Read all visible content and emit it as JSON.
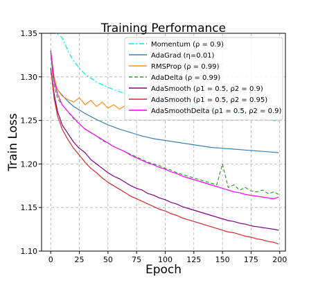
{
  "chart_data": {
    "type": "line",
    "title": "Training Performance",
    "xlabel": "Epoch",
    "ylabel": "Train Loss",
    "xlim": [
      -8,
      205
    ],
    "ylim": [
      1.1,
      1.35
    ],
    "xticks": [
      0,
      25,
      50,
      75,
      100,
      125,
      150,
      175,
      200
    ],
    "yticks": [
      1.1,
      1.15,
      1.2,
      1.25,
      1.3,
      1.35
    ],
    "ytick_labels": [
      "1.10",
      "1.15",
      "1.20",
      "1.25",
      "1.30",
      "1.35"
    ],
    "grid": true,
    "legend_position": "top-right",
    "series": [
      {
        "name": "Momentum (ρ = 0.9)",
        "color": "#00e5ee",
        "dash": "dashdot",
        "x": [
          0,
          5,
          10,
          15,
          20,
          25,
          30,
          40,
          50,
          60,
          70,
          80,
          90,
          100,
          110,
          120,
          130,
          140,
          150,
          160,
          170,
          180,
          190,
          199
        ],
        "values": [
          1.38,
          1.36,
          1.345,
          1.33,
          1.318,
          1.31,
          1.303,
          1.294,
          1.288,
          1.283,
          1.279,
          1.276,
          1.274,
          1.272,
          1.27,
          1.268,
          1.266,
          1.264,
          1.262,
          1.26,
          1.257,
          1.254,
          1.251,
          1.249
        ]
      },
      {
        "name": "AdaGrad (η=0.01)",
        "color": "#3a7fb5",
        "dash": "solid",
        "x": [
          0,
          2,
          5,
          10,
          15,
          20,
          25,
          30,
          40,
          50,
          60,
          70,
          80,
          90,
          100,
          110,
          120,
          130,
          140,
          150,
          160,
          170,
          180,
          190,
          199
        ],
        "values": [
          1.328,
          1.3,
          1.287,
          1.279,
          1.272,
          1.266,
          1.262,
          1.258,
          1.251,
          1.245,
          1.24,
          1.236,
          1.232,
          1.229,
          1.227,
          1.225,
          1.223,
          1.221,
          1.219,
          1.218,
          1.217,
          1.216,
          1.215,
          1.214,
          1.213
        ]
      },
      {
        "name": "RMSProp (ρ = 0.99)",
        "color": "#ff8c1a",
        "dash": "solid",
        "x": [
          0,
          3,
          6,
          10,
          15,
          20,
          25,
          30,
          35,
          40,
          45,
          50,
          55,
          60,
          65,
          70,
          75,
          80,
          85,
          90,
          95,
          100
        ],
        "values": [
          1.33,
          1.3,
          1.285,
          1.278,
          1.274,
          1.271,
          1.276,
          1.268,
          1.273,
          1.266,
          1.271,
          1.264,
          1.268,
          1.263,
          1.267,
          1.262,
          1.266,
          1.261,
          1.265,
          1.26,
          1.263,
          1.26
        ]
      },
      {
        "name": "AdaDelta (ρ = 0.99)",
        "color": "#2ca02c",
        "dash": "dashed",
        "x": [
          0,
          3,
          6,
          10,
          15,
          20,
          25,
          30,
          35,
          40,
          45,
          50,
          55,
          60,
          65,
          70,
          75,
          80,
          85,
          90,
          95,
          100,
          105,
          110,
          115,
          120,
          125,
          130,
          135,
          140,
          145,
          150,
          155,
          160,
          165,
          170,
          175,
          180,
          185,
          190,
          195,
          199
        ],
        "values": [
          1.33,
          1.29,
          1.275,
          1.268,
          1.26,
          1.252,
          1.246,
          1.24,
          1.236,
          1.232,
          1.227,
          1.224,
          1.22,
          1.217,
          1.214,
          1.211,
          1.208,
          1.205,
          1.202,
          1.2,
          1.198,
          1.195,
          1.193,
          1.19,
          1.188,
          1.186,
          1.184,
          1.182,
          1.18,
          1.178,
          1.176,
          1.2,
          1.173,
          1.176,
          1.17,
          1.173,
          1.169,
          1.168,
          1.17,
          1.166,
          1.168,
          1.165
        ]
      },
      {
        "name": "AdaSmooth (ρ1 = 0.5, ρ2 = 0.9)",
        "color": "#800080",
        "dash": "solid",
        "x": [
          0,
          3,
          6,
          10,
          15,
          20,
          25,
          30,
          35,
          40,
          45,
          50,
          55,
          60,
          65,
          70,
          75,
          80,
          85,
          90,
          95,
          100,
          105,
          110,
          115,
          120,
          125,
          130,
          135,
          140,
          145,
          150,
          155,
          160,
          165,
          170,
          175,
          180,
          185,
          190,
          195,
          199
        ],
        "values": [
          1.31,
          1.28,
          1.26,
          1.245,
          1.235,
          1.225,
          1.218,
          1.213,
          1.205,
          1.2,
          1.195,
          1.19,
          1.186,
          1.183,
          1.179,
          1.175,
          1.172,
          1.17,
          1.166,
          1.164,
          1.161,
          1.159,
          1.156,
          1.154,
          1.151,
          1.149,
          1.147,
          1.145,
          1.143,
          1.141,
          1.139,
          1.137,
          1.135,
          1.134,
          1.132,
          1.131,
          1.129,
          1.128,
          1.127,
          1.126,
          1.125,
          1.124
        ]
      },
      {
        "name": "AdaSmooth (ρ1 = 0.5, ρ2 = 0.95)",
        "color": "#d62728",
        "dash": "solid",
        "x": [
          0,
          3,
          6,
          10,
          15,
          20,
          25,
          30,
          35,
          40,
          45,
          50,
          55,
          60,
          65,
          70,
          75,
          80,
          85,
          90,
          95,
          100,
          105,
          110,
          115,
          120,
          125,
          130,
          135,
          140,
          145,
          150,
          155,
          160,
          165,
          170,
          175,
          180,
          185,
          190,
          195,
          199
        ],
        "values": [
          1.31,
          1.275,
          1.255,
          1.24,
          1.228,
          1.218,
          1.21,
          1.202,
          1.195,
          1.19,
          1.184,
          1.179,
          1.175,
          1.171,
          1.167,
          1.163,
          1.16,
          1.157,
          1.154,
          1.151,
          1.148,
          1.146,
          1.143,
          1.141,
          1.138,
          1.136,
          1.134,
          1.132,
          1.13,
          1.128,
          1.126,
          1.124,
          1.122,
          1.121,
          1.119,
          1.117,
          1.116,
          1.114,
          1.113,
          1.111,
          1.11,
          1.108
        ]
      },
      {
        "name": "AdaSmoothDelta (ρ1 = 0.5, ρ2 = 0.9)",
        "color": "#ff00ff",
        "dash": "solid",
        "x": [
          0,
          3,
          6,
          10,
          15,
          20,
          25,
          30,
          35,
          40,
          45,
          50,
          55,
          60,
          65,
          70,
          75,
          80,
          85,
          90,
          95,
          100,
          105,
          110,
          115,
          120,
          125,
          130,
          135,
          140,
          145,
          150,
          155,
          160,
          165,
          170,
          175,
          180,
          185,
          190,
          195,
          199
        ],
        "values": [
          1.33,
          1.295,
          1.28,
          1.268,
          1.26,
          1.253,
          1.246,
          1.24,
          1.236,
          1.232,
          1.228,
          1.224,
          1.22,
          1.217,
          1.214,
          1.21,
          1.207,
          1.204,
          1.201,
          1.199,
          1.196,
          1.194,
          1.191,
          1.189,
          1.186,
          1.184,
          1.182,
          1.18,
          1.178,
          1.176,
          1.174,
          1.172,
          1.17,
          1.168,
          1.167,
          1.165,
          1.164,
          1.163,
          1.162,
          1.161,
          1.16,
          1.162
        ]
      }
    ]
  }
}
